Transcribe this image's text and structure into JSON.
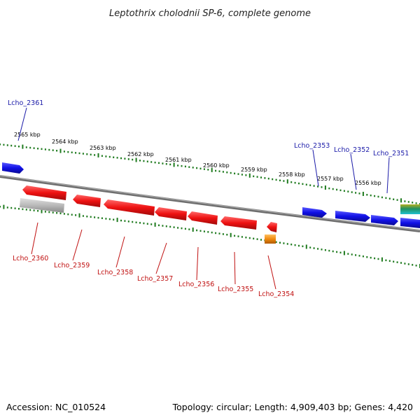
{
  "title": "Leptothrix cholodnii SP-6, complete genome",
  "accession": "Accession: NC_010524",
  "summary": "Topology: circular; Length: 4,909,403 bp; Genes: 4,420",
  "scale_labels": [
    "2565 kbp",
    "2564 kbp",
    "2563 kbp",
    "2562 kbp",
    "2561 kbp",
    "2560 kbp",
    "2559 kbp",
    "2558 kbp",
    "2557 kbp",
    "2556 kbp"
  ],
  "genes_forward": [
    "Lcho_2361",
    "Lcho_2353",
    "Lcho_2352",
    "Lcho_2351"
  ],
  "genes_reverse": [
    "Lcho_2360",
    "Lcho_2359",
    "Lcho_2358",
    "Lcho_2357",
    "Lcho_2356",
    "Lcho_2355",
    "Lcho_2354"
  ],
  "colors": {
    "forward_cds": "#1010e6",
    "reverse_cds": "#ee1111",
    "pseudo": "#b8b8b8",
    "rna": "#f08a10",
    "backbone": "#808080",
    "ticks": "#1e7a1e",
    "forward_label": "#1a1aa8",
    "reverse_label": "#c01010"
  }
}
